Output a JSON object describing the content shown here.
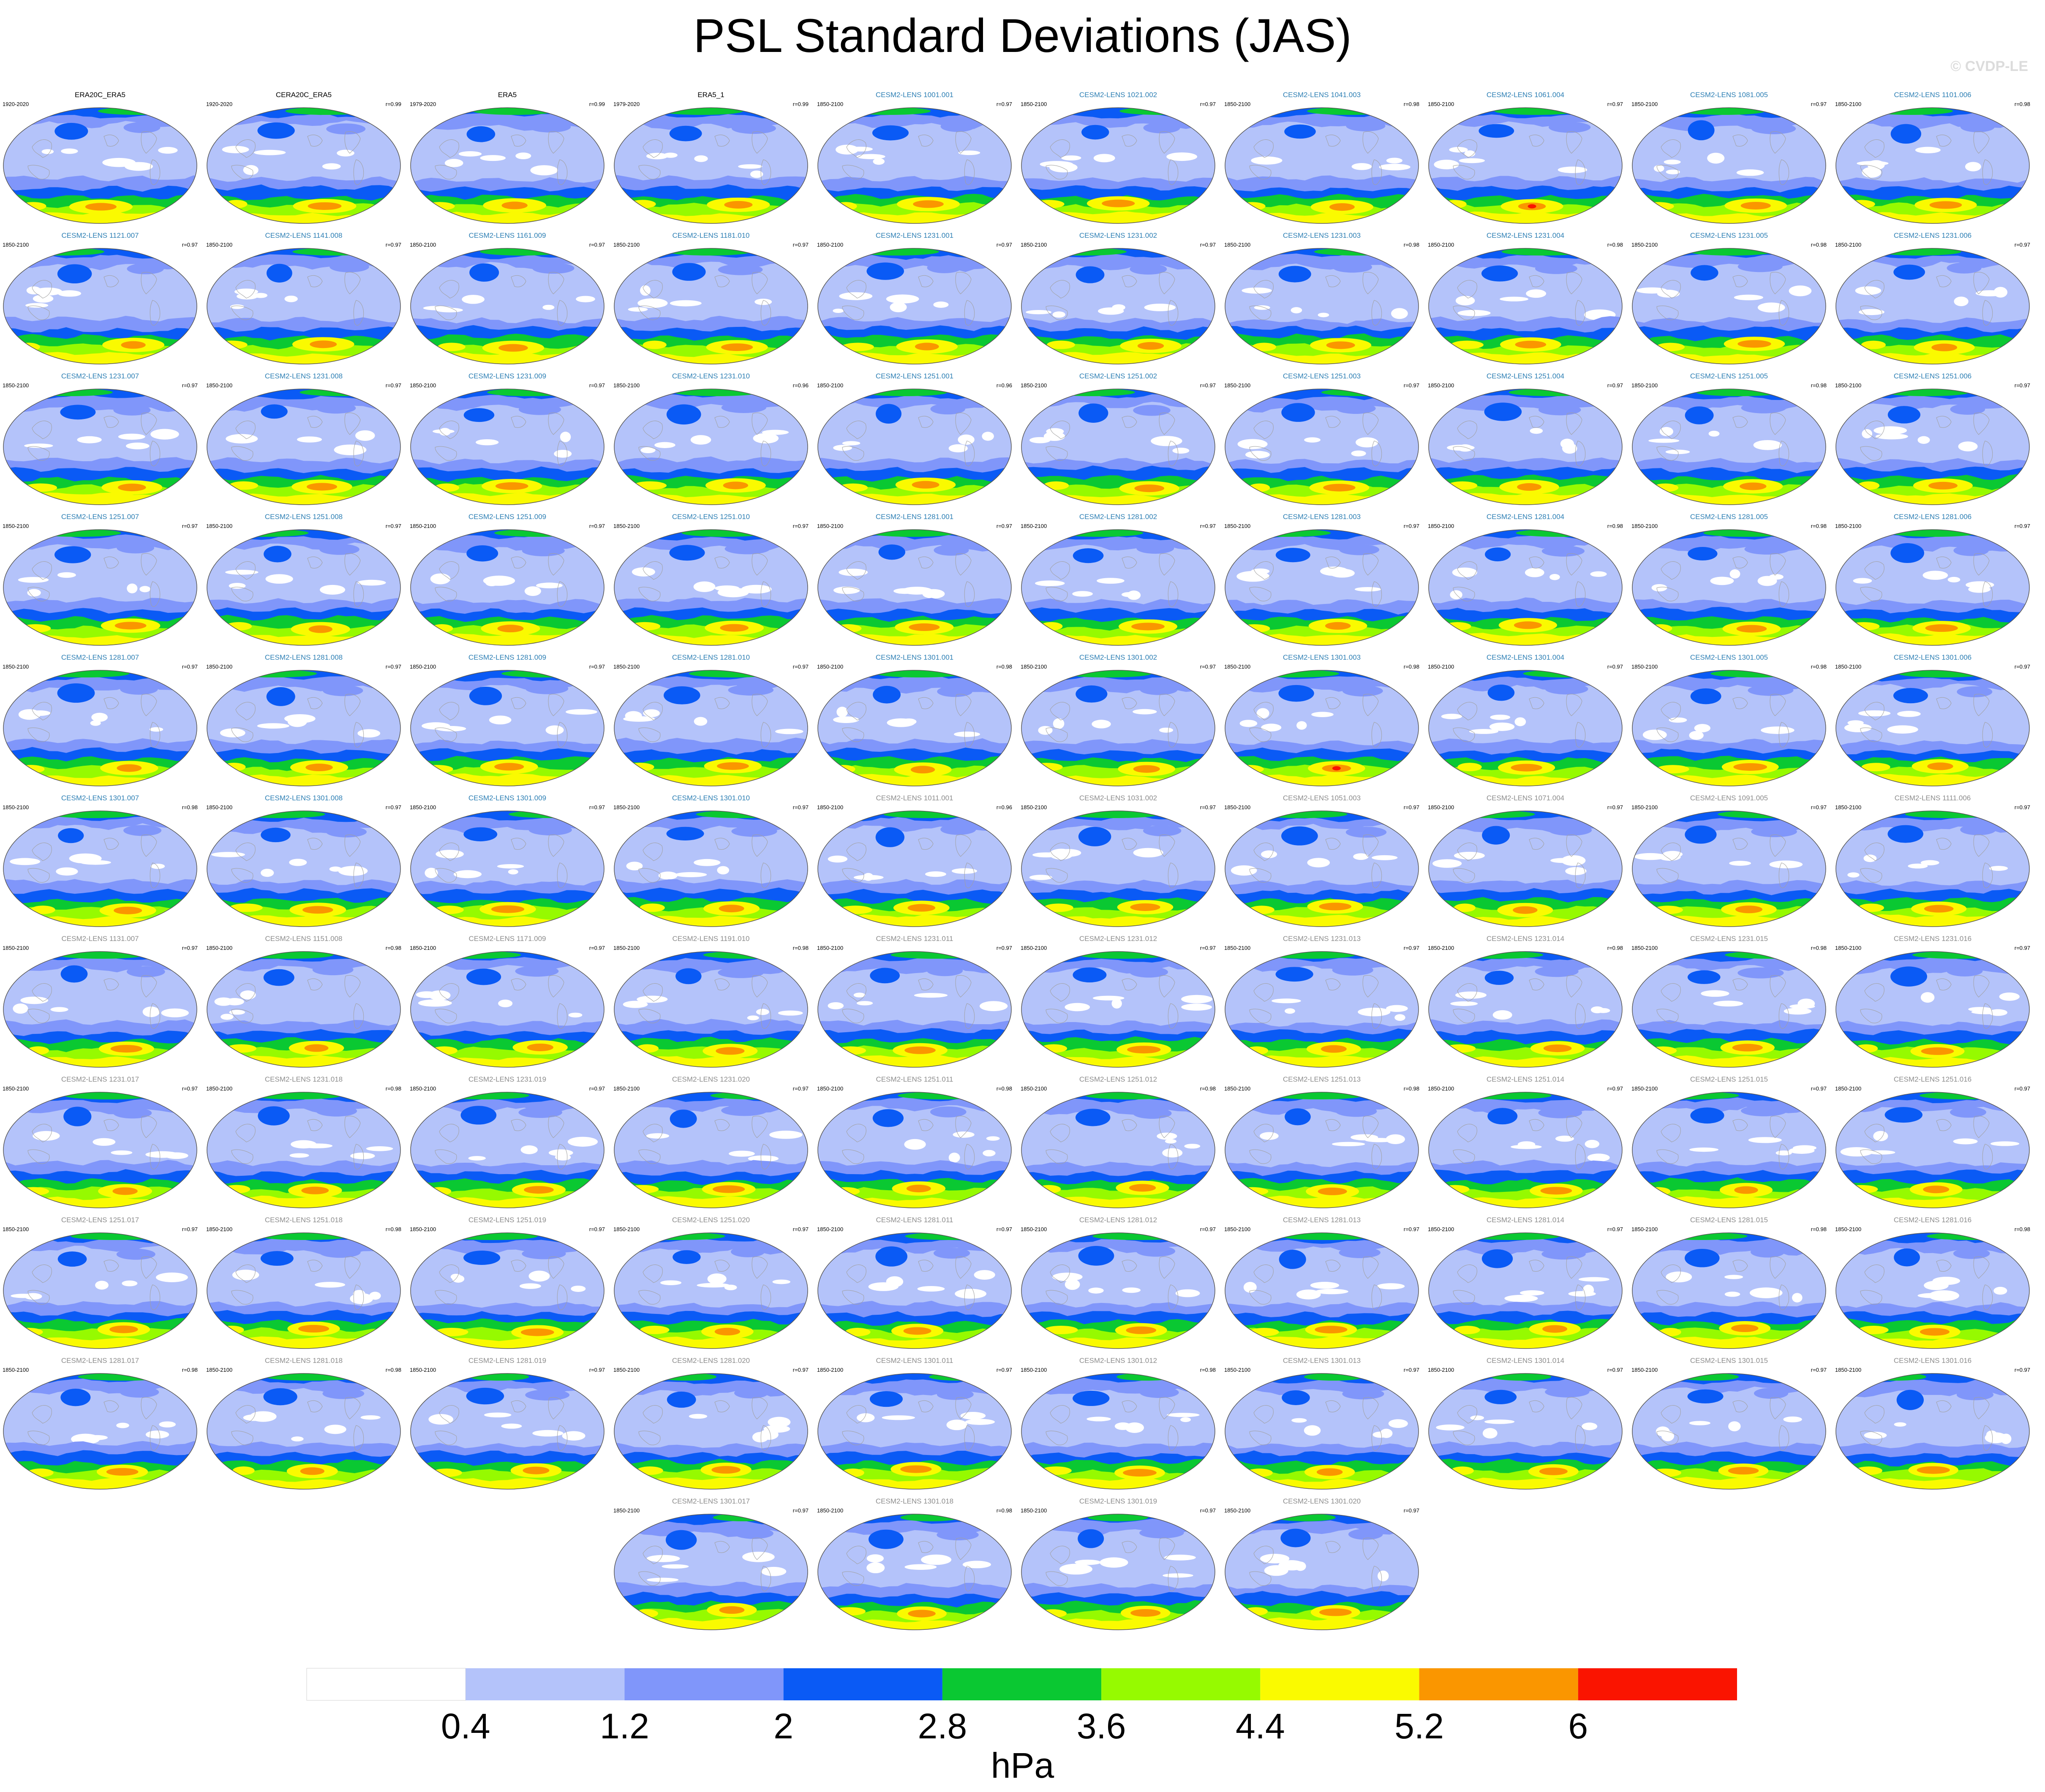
{
  "title": "PSL Standard Deviations (JAS)",
  "copyright": "© CVDP-LE",
  "colorbar": {
    "units": "hPa",
    "tick_labels": [
      "0.4",
      "1.2",
      "2",
      "2.8",
      "3.6",
      "4.4",
      "5.2",
      "6"
    ],
    "colors": [
      "#ffffff",
      "#b4c3fa",
      "#8096fa",
      "#0a5af5",
      "#0ac832",
      "#96fa00",
      "#fafa00",
      "#fa9600",
      "#fa1400"
    ]
  },
  "styles": {
    "observed_title_color": "#000000",
    "member_title_color": "#2d7fb4",
    "member_title_color_gray": "#8c8c8c",
    "coastline_color": "#a0a0a0"
  },
  "panels": [
    {
      "title": "ERA20C_ERA5",
      "period": "1920-2020",
      "corr": "",
      "title_style": "obs"
    },
    {
      "title": "CERA20C_ERA5",
      "period": "1920-2020",
      "corr": "r=0.99",
      "title_style": "obs"
    },
    {
      "title": "ERA5",
      "period": "1979-2020",
      "corr": "r=0.99",
      "title_style": "obs"
    },
    {
      "title": "ERA5_1",
      "period": "1979-2020",
      "corr": "r=0.99",
      "title_style": "obs"
    },
    {
      "title": "CESM2-LENS 1001.001",
      "period": "1850-2100",
      "corr": "r=0.97",
      "title_style": "blue"
    },
    {
      "title": "CESM2-LENS 1021.002",
      "period": "1850-2100",
      "corr": "r=0.97",
      "title_style": "blue"
    },
    {
      "title": "CESM2-LENS 1041.003",
      "period": "1850-2100",
      "corr": "r=0.98",
      "title_style": "blue"
    },
    {
      "title": "CESM2-LENS 1061.004",
      "period": "1850-2100",
      "corr": "r=0.97",
      "title_style": "blue"
    },
    {
      "title": "CESM2-LENS 1081.005",
      "period": "1850-2100",
      "corr": "r=0.97",
      "title_style": "blue"
    },
    {
      "title": "CESM2-LENS 1101.006",
      "period": "1850-2100",
      "corr": "r=0.98",
      "title_style": "blue"
    },
    {
      "title": "CESM2-LENS 1121.007",
      "period": "1850-2100",
      "corr": "r=0.97",
      "title_style": "blue"
    },
    {
      "title": "CESM2-LENS 1141.008",
      "period": "1850-2100",
      "corr": "r=0.97",
      "title_style": "blue"
    },
    {
      "title": "CESM2-LENS 1161.009",
      "period": "1850-2100",
      "corr": "r=0.97",
      "title_style": "blue"
    },
    {
      "title": "CESM2-LENS 1181.010",
      "period": "1850-2100",
      "corr": "r=0.97",
      "title_style": "blue"
    },
    {
      "title": "CESM2-LENS 1231.001",
      "period": "1850-2100",
      "corr": "r=0.97",
      "title_style": "blue"
    },
    {
      "title": "CESM2-LENS 1231.002",
      "period": "1850-2100",
      "corr": "r=0.97",
      "title_style": "blue"
    },
    {
      "title": "CESM2-LENS 1231.003",
      "period": "1850-2100",
      "corr": "r=0.98",
      "title_style": "blue"
    },
    {
      "title": "CESM2-LENS 1231.004",
      "period": "1850-2100",
      "corr": "r=0.98",
      "title_style": "blue"
    },
    {
      "title": "CESM2-LENS 1231.005",
      "period": "1850-2100",
      "corr": "r=0.98",
      "title_style": "blue"
    },
    {
      "title": "CESM2-LENS 1231.006",
      "period": "1850-2100",
      "corr": "r=0.97",
      "title_style": "blue"
    },
    {
      "title": "CESM2-LENS 1231.007",
      "period": "1850-2100",
      "corr": "r=0.97",
      "title_style": "blue"
    },
    {
      "title": "CESM2-LENS 1231.008",
      "period": "1850-2100",
      "corr": "r=0.97",
      "title_style": "blue"
    },
    {
      "title": "CESM2-LENS 1231.009",
      "period": "1850-2100",
      "corr": "r=0.97",
      "title_style": "blue"
    },
    {
      "title": "CESM2-LENS 1231.010",
      "period": "1850-2100",
      "corr": "r=0.96",
      "title_style": "blue"
    },
    {
      "title": "CESM2-LENS 1251.001",
      "period": "1850-2100",
      "corr": "r=0.96",
      "title_style": "blue"
    },
    {
      "title": "CESM2-LENS 1251.002",
      "period": "1850-2100",
      "corr": "r=0.97",
      "title_style": "blue"
    },
    {
      "title": "CESM2-LENS 1251.003",
      "period": "1850-2100",
      "corr": "r=0.97",
      "title_style": "blue"
    },
    {
      "title": "CESM2-LENS 1251.004",
      "period": "1850-2100",
      "corr": "r=0.97",
      "title_style": "blue"
    },
    {
      "title": "CESM2-LENS 1251.005",
      "period": "1850-2100",
      "corr": "r=0.98",
      "title_style": "blue"
    },
    {
      "title": "CESM2-LENS 1251.006",
      "period": "1850-2100",
      "corr": "r=0.97",
      "title_style": "blue"
    },
    {
      "title": "CESM2-LENS 1251.007",
      "period": "1850-2100",
      "corr": "r=0.97",
      "title_style": "blue"
    },
    {
      "title": "CESM2-LENS 1251.008",
      "period": "1850-2100",
      "corr": "r=0.97",
      "title_style": "blue"
    },
    {
      "title": "CESM2-LENS 1251.009",
      "period": "1850-2100",
      "corr": "r=0.97",
      "title_style": "blue"
    },
    {
      "title": "CESM2-LENS 1251.010",
      "period": "1850-2100",
      "corr": "r=0.97",
      "title_style": "blue"
    },
    {
      "title": "CESM2-LENS 1281.001",
      "period": "1850-2100",
      "corr": "r=0.97",
      "title_style": "blue"
    },
    {
      "title": "CESM2-LENS 1281.002",
      "period": "1850-2100",
      "corr": "r=0.97",
      "title_style": "blue"
    },
    {
      "title": "CESM2-LENS 1281.003",
      "period": "1850-2100",
      "corr": "r=0.97",
      "title_style": "blue"
    },
    {
      "title": "CESM2-LENS 1281.004",
      "period": "1850-2100",
      "corr": "r=0.98",
      "title_style": "blue"
    },
    {
      "title": "CESM2-LENS 1281.005",
      "period": "1850-2100",
      "corr": "r=0.98",
      "title_style": "blue"
    },
    {
      "title": "CESM2-LENS 1281.006",
      "period": "1850-2100",
      "corr": "r=0.97",
      "title_style": "blue"
    },
    {
      "title": "CESM2-LENS 1281.007",
      "period": "1850-2100",
      "corr": "r=0.97",
      "title_style": "blue"
    },
    {
      "title": "CESM2-LENS 1281.008",
      "period": "1850-2100",
      "corr": "r=0.97",
      "title_style": "blue"
    },
    {
      "title": "CESM2-LENS 1281.009",
      "period": "1850-2100",
      "corr": "r=0.97",
      "title_style": "blue"
    },
    {
      "title": "CESM2-LENS 1281.010",
      "period": "1850-2100",
      "corr": "r=0.97",
      "title_style": "blue"
    },
    {
      "title": "CESM2-LENS 1301.001",
      "period": "1850-2100",
      "corr": "r=0.98",
      "title_style": "blue"
    },
    {
      "title": "CESM2-LENS 1301.002",
      "period": "1850-2100",
      "corr": "r=0.97",
      "title_style": "blue"
    },
    {
      "title": "CESM2-LENS 1301.003",
      "period": "1850-2100",
      "corr": "r=0.98",
      "title_style": "blue"
    },
    {
      "title": "CESM2-LENS 1301.004",
      "period": "1850-2100",
      "corr": "r=0.97",
      "title_style": "blue"
    },
    {
      "title": "CESM2-LENS 1301.005",
      "period": "1850-2100",
      "corr": "r=0.98",
      "title_style": "blue"
    },
    {
      "title": "CESM2-LENS 1301.006",
      "period": "1850-2100",
      "corr": "r=0.97",
      "title_style": "blue"
    },
    {
      "title": "CESM2-LENS 1301.007",
      "period": "1850-2100",
      "corr": "r=0.98",
      "title_style": "blue"
    },
    {
      "title": "CESM2-LENS 1301.008",
      "period": "1850-2100",
      "corr": "r=0.97",
      "title_style": "blue"
    },
    {
      "title": "CESM2-LENS 1301.009",
      "period": "1850-2100",
      "corr": "r=0.97",
      "title_style": "blue"
    },
    {
      "title": "CESM2-LENS 1301.010",
      "period": "1850-2100",
      "corr": "r=0.97",
      "title_style": "blue"
    },
    {
      "title": "CESM2-LENS 1011.001",
      "period": "1850-2100",
      "corr": "r=0.96",
      "title_style": "gray"
    },
    {
      "title": "CESM2-LENS 1031.002",
      "period": "1850-2100",
      "corr": "r=0.97",
      "title_style": "gray"
    },
    {
      "title": "CESM2-LENS 1051.003",
      "period": "1850-2100",
      "corr": "r=0.97",
      "title_style": "gray"
    },
    {
      "title": "CESM2-LENS 1071.004",
      "period": "1850-2100",
      "corr": "r=0.97",
      "title_style": "gray"
    },
    {
      "title": "CESM2-LENS 1091.005",
      "period": "1850-2100",
      "corr": "r=0.97",
      "title_style": "gray"
    },
    {
      "title": "CESM2-LENS 1111.006",
      "period": "1850-2100",
      "corr": "r=0.97",
      "title_style": "gray"
    },
    {
      "title": "CESM2-LENS 1131.007",
      "period": "1850-2100",
      "corr": "r=0.97",
      "title_style": "gray"
    },
    {
      "title": "CESM2-LENS 1151.008",
      "period": "1850-2100",
      "corr": "r=0.98",
      "title_style": "gray"
    },
    {
      "title": "CESM2-LENS 1171.009",
      "period": "1850-2100",
      "corr": "r=0.97",
      "title_style": "gray"
    },
    {
      "title": "CESM2-LENS 1191.010",
      "period": "1850-2100",
      "corr": "r=0.98",
      "title_style": "gray"
    },
    {
      "title": "CESM2-LENS 1231.011",
      "period": "1850-2100",
      "corr": "r=0.97",
      "title_style": "gray"
    },
    {
      "title": "CESM2-LENS 1231.012",
      "period": "1850-2100",
      "corr": "r=0.97",
      "title_style": "gray"
    },
    {
      "title": "CESM2-LENS 1231.013",
      "period": "1850-2100",
      "corr": "r=0.97",
      "title_style": "gray"
    },
    {
      "title": "CESM2-LENS 1231.014",
      "period": "1850-2100",
      "corr": "r=0.98",
      "title_style": "gray"
    },
    {
      "title": "CESM2-LENS 1231.015",
      "period": "1850-2100",
      "corr": "r=0.98",
      "title_style": "gray"
    },
    {
      "title": "CESM2-LENS 1231.016",
      "period": "1850-2100",
      "corr": "r=0.97",
      "title_style": "gray"
    },
    {
      "title": "CESM2-LENS 1231.017",
      "period": "1850-2100",
      "corr": "r=0.97",
      "title_style": "gray"
    },
    {
      "title": "CESM2-LENS 1231.018",
      "period": "1850-2100",
      "corr": "r=0.98",
      "title_style": "gray"
    },
    {
      "title": "CESM2-LENS 1231.019",
      "period": "1850-2100",
      "corr": "r=0.97",
      "title_style": "gray"
    },
    {
      "title": "CESM2-LENS 1231.020",
      "period": "1850-2100",
      "corr": "r=0.97",
      "title_style": "gray"
    },
    {
      "title": "CESM2-LENS 1251.011",
      "period": "1850-2100",
      "corr": "r=0.98",
      "title_style": "gray"
    },
    {
      "title": "CESM2-LENS 1251.012",
      "period": "1850-2100",
      "corr": "r=0.98",
      "title_style": "gray"
    },
    {
      "title": "CESM2-LENS 1251.013",
      "period": "1850-2100",
      "corr": "r=0.98",
      "title_style": "gray"
    },
    {
      "title": "CESM2-LENS 1251.014",
      "period": "1850-2100",
      "corr": "r=0.97",
      "title_style": "gray"
    },
    {
      "title": "CESM2-LENS 1251.015",
      "period": "1850-2100",
      "corr": "r=0.97",
      "title_style": "gray"
    },
    {
      "title": "CESM2-LENS 1251.016",
      "period": "1850-2100",
      "corr": "r=0.97",
      "title_style": "gray"
    },
    {
      "title": "CESM2-LENS 1251.017",
      "period": "1850-2100",
      "corr": "r=0.97",
      "title_style": "gray"
    },
    {
      "title": "CESM2-LENS 1251.018",
      "period": "1850-2100",
      "corr": "r=0.98",
      "title_style": "gray"
    },
    {
      "title": "CESM2-LENS 1251.019",
      "period": "1850-2100",
      "corr": "r=0.97",
      "title_style": "gray"
    },
    {
      "title": "CESM2-LENS 1251.020",
      "period": "1850-2100",
      "corr": "r=0.97",
      "title_style": "gray"
    },
    {
      "title": "CESM2-LENS 1281.011",
      "period": "1850-2100",
      "corr": "r=0.97",
      "title_style": "gray"
    },
    {
      "title": "CESM2-LENS 1281.012",
      "period": "1850-2100",
      "corr": "r=0.97",
      "title_style": "gray"
    },
    {
      "title": "CESM2-LENS 1281.013",
      "period": "1850-2100",
      "corr": "r=0.97",
      "title_style": "gray"
    },
    {
      "title": "CESM2-LENS 1281.014",
      "period": "1850-2100",
      "corr": "r=0.97",
      "title_style": "gray"
    },
    {
      "title": "CESM2-LENS 1281.015",
      "period": "1850-2100",
      "corr": "r=0.98",
      "title_style": "gray"
    },
    {
      "title": "CESM2-LENS 1281.016",
      "period": "1850-2100",
      "corr": "r=0.98",
      "title_style": "gray"
    },
    {
      "title": "CESM2-LENS 1281.017",
      "period": "1850-2100",
      "corr": "r=0.98",
      "title_style": "gray"
    },
    {
      "title": "CESM2-LENS 1281.018",
      "period": "1850-2100",
      "corr": "r=0.98",
      "title_style": "gray"
    },
    {
      "title": "CESM2-LENS 1281.019",
      "period": "1850-2100",
      "corr": "r=0.97",
      "title_style": "gray"
    },
    {
      "title": "CESM2-LENS 1281.020",
      "period": "1850-2100",
      "corr": "r=0.97",
      "title_style": "gray"
    },
    {
      "title": "CESM2-LENS 1301.011",
      "period": "1850-2100",
      "corr": "r=0.97",
      "title_style": "gray"
    },
    {
      "title": "CESM2-LENS 1301.012",
      "period": "1850-2100",
      "corr": "r=0.98",
      "title_style": "gray"
    },
    {
      "title": "CESM2-LENS 1301.013",
      "period": "1850-2100",
      "corr": "r=0.97",
      "title_style": "gray"
    },
    {
      "title": "CESM2-LENS 1301.014",
      "period": "1850-2100",
      "corr": "r=0.97",
      "title_style": "gray"
    },
    {
      "title": "CESM2-LENS 1301.015",
      "period": "1850-2100",
      "corr": "r=0.97",
      "title_style": "gray"
    },
    {
      "title": "CESM2-LENS 1301.016",
      "period": "1850-2100",
      "corr": "r=0.97",
      "title_style": "gray"
    },
    {
      "title": "CESM2-LENS 1301.017",
      "period": "1850-2100",
      "corr": "r=0.97",
      "title_style": "gray"
    },
    {
      "title": "CESM2-LENS 1301.018",
      "period": "1850-2100",
      "corr": "r=0.98",
      "title_style": "gray"
    },
    {
      "title": "CESM2-LENS 1301.019",
      "period": "1850-2100",
      "corr": "r=0.97",
      "title_style": "gray"
    },
    {
      "title": "CESM2-LENS 1301.020",
      "period": "1850-2100",
      "corr": "r=0.97",
      "title_style": "gray"
    }
  ]
}
